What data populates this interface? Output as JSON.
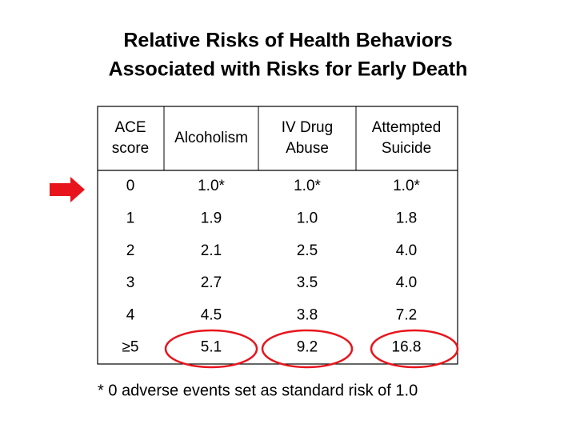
{
  "title": [
    "Relative Risks of Health Behaviors",
    "Associated with Risks for Early Death"
  ],
  "table": {
    "header": [
      [
        "ACE",
        "score"
      ],
      [
        "Alcoholism"
      ],
      [
        "IV Drug",
        "Abuse"
      ],
      [
        "Attempted",
        "Suicide"
      ]
    ],
    "rows": [
      [
        "0",
        "1.0*",
        "1.0*",
        "1.0*"
      ],
      [
        "1",
        "1.9",
        "1.0",
        "1.8"
      ],
      [
        "2",
        "2.1",
        "2.5",
        "4.0"
      ],
      [
        "3",
        "2.7",
        "3.5",
        "4.0"
      ],
      [
        "4",
        "4.5",
        "3.8",
        "7.2"
      ],
      [
        "≥5",
        "5.1",
        "9.2",
        "16.8"
      ]
    ]
  },
  "footnote": "* 0 adverse events set as standard risk of 1.0"
}
